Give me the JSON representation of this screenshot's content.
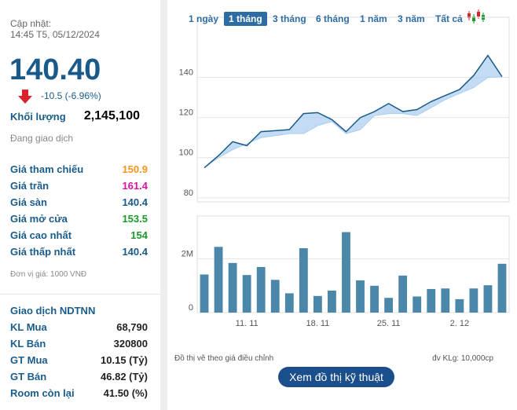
{
  "header": {
    "updated_label": "Cập nhật:",
    "updated_time": "14:45 T5, 05/12/2024",
    "price": "140.40",
    "change": "-10.5 (-6.96%)"
  },
  "volume": {
    "label": "Khối lượng",
    "value": "2,145,100"
  },
  "status": "Đang giao dịch",
  "prices": [
    {
      "label": "Giá tham chiếu",
      "value": "150.9",
      "color": "#f7941d"
    },
    {
      "label": "Giá trần",
      "value": "161.4",
      "color": "#e0139d"
    },
    {
      "label": "Giá sàn",
      "value": "140.4",
      "color": "#1a5a8a"
    },
    {
      "label": "Giá mở cửa",
      "value": "153.5",
      "color": "#1a9a2a"
    },
    {
      "label": "Giá cao nhất",
      "value": "154",
      "color": "#1a9a2a"
    },
    {
      "label": "Giá thấp nhất",
      "value": "140.4",
      "color": "#1a5a8a"
    }
  ],
  "unit_note": "Đơn vị giá: 1000 VNĐ",
  "foreign": {
    "title": "Giao dịch NDTNN",
    "rows": [
      {
        "label": "KL Mua",
        "value": "68,790"
      },
      {
        "label": "KL Bán",
        "value": "320800"
      },
      {
        "label": "GT Mua",
        "value": "10.15 (Tỷ)"
      },
      {
        "label": "GT Bán",
        "value": "46.82 (Tỷ)"
      },
      {
        "label": "Room còn lại",
        "value": "41.50 (%)"
      }
    ]
  },
  "tabs": [
    "1 ngày",
    "1 tháng",
    "3 tháng",
    "6 tháng",
    "1 năm",
    "3 năm",
    "Tất cả"
  ],
  "active_tab": 1,
  "chart_data": [
    {
      "type": "line",
      "ylim": [
        78,
        170
      ],
      "yticks": [
        80,
        100,
        120,
        140
      ],
      "grid": true,
      "categories": [
        null,
        null,
        null,
        "11. 11",
        null,
        null,
        null,
        null,
        "18. 11",
        null,
        null,
        null,
        null,
        "25. 11",
        null,
        null,
        null,
        null,
        "2. 12",
        null,
        null,
        null
      ],
      "series": [
        {
          "color": "#1a5a8a",
          "values": [
            95,
            101,
            108,
            106,
            113,
            113.5,
            114,
            122,
            122.5,
            119,
            113,
            120,
            123,
            127,
            123,
            124,
            128,
            131,
            134,
            141,
            151,
            140.4
          ]
        },
        {
          "color": "#a9cdef",
          "values": [
            95,
            100,
            104,
            107,
            110,
            111,
            112,
            112,
            116,
            118,
            112,
            114,
            121,
            122,
            122,
            121,
            125,
            129,
            132,
            135,
            140,
            140.4
          ]
        }
      ]
    },
    {
      "type": "bar",
      "ylim": [
        0,
        3600000
      ],
      "yticks": [
        0,
        {
          "value": 2000000,
          "label": "2M"
        }
      ],
      "grid": true,
      "color": "#4a87a8",
      "categories": [
        null,
        null,
        null,
        "11. 11",
        null,
        null,
        null,
        null,
        "18. 11",
        null,
        null,
        null,
        null,
        "25. 11",
        null,
        null,
        null,
        null,
        "2. 12",
        null,
        null,
        null
      ],
      "values": [
        1420000,
        2450000,
        1850000,
        1400000,
        1700000,
        1220000,
        720000,
        2400000,
        620000,
        820000,
        3000000,
        1200000,
        1000000,
        550000,
        1380000,
        600000,
        880000,
        900000,
        500000,
        900000,
        1020000,
        1820000
      ]
    }
  ],
  "footnote_left": "Đồ thị vẽ theo giá điều chỉnh",
  "footnote_right": "đv KLg: 10,000cp",
  "button": "Xem đồ thị kỹ thuật"
}
